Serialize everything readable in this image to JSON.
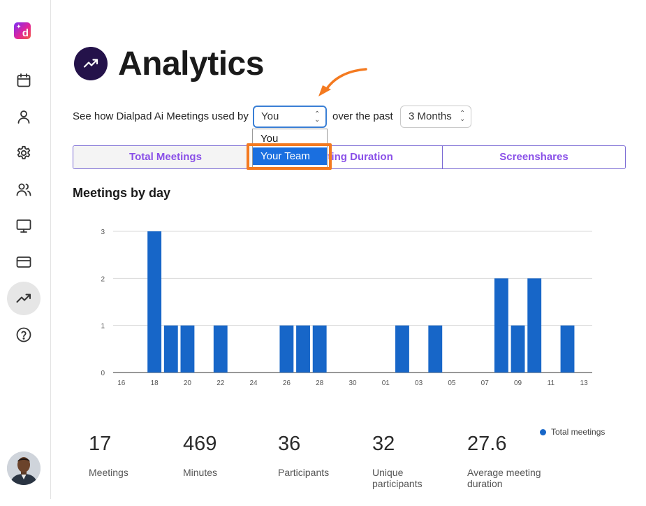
{
  "app": {
    "logo_letter": "d",
    "logo_sparkle": "✦"
  },
  "sidebar": {
    "items": [
      {
        "icon": "calendar-icon"
      },
      {
        "icon": "user-icon"
      },
      {
        "icon": "gear-icon"
      },
      {
        "icon": "users-icon"
      },
      {
        "icon": "monitor-icon"
      },
      {
        "icon": "credit-card-icon"
      },
      {
        "icon": "trending-up-icon",
        "active": true
      },
      {
        "icon": "help-icon"
      }
    ]
  },
  "header": {
    "title": "Analytics",
    "icon": "trending-up-icon",
    "icon_bg": "#24124a"
  },
  "filter": {
    "prefix": "See how Dialpad Ai Meetings used by",
    "user_select_value": "You",
    "middle": "over the past",
    "period_select_value": "3 Months",
    "dropdown_options": [
      "You",
      "Your Team"
    ],
    "dropdown_highlighted": "Your Team"
  },
  "tabs": [
    "Total Meetings",
    "Meeting Duration",
    "Screenshares"
  ],
  "tab_selected": "Total Meetings",
  "section": {
    "title": "Meetings by day"
  },
  "chart_data": {
    "type": "bar",
    "x_tick_labels": [
      "16",
      "18",
      "20",
      "22",
      "24",
      "26",
      "28",
      "30",
      "01",
      "03",
      "05",
      "07",
      "09",
      "11",
      "13"
    ],
    "y_tick_labels": [
      "0",
      "1",
      "2",
      "3"
    ],
    "ylim": [
      0,
      3
    ],
    "grid": true,
    "legend": "bottom-right",
    "series": [
      {
        "name": "Total meetings",
        "color": "#1766c8",
        "values": [
          0,
          0,
          3,
          1,
          1,
          0,
          1,
          0,
          0,
          0,
          1,
          1,
          1,
          0,
          0,
          0,
          0,
          1,
          0,
          1,
          0,
          0,
          0,
          2,
          1,
          2,
          0,
          1,
          0
        ]
      }
    ]
  },
  "legend": {
    "label": "Total meetings"
  },
  "stats": [
    {
      "value": "17",
      "label": "Meetings"
    },
    {
      "value": "469",
      "label": "Minutes"
    },
    {
      "value": "36",
      "label": "Participants"
    },
    {
      "value": "32",
      "label": "Unique participants"
    },
    {
      "value": "27.6",
      "label": "Average meeting duration"
    }
  ],
  "colors": {
    "accent": "#8a50e8",
    "bar": "#1766c8",
    "highlight": "#1a6fe0",
    "callout": "#f47a20"
  }
}
